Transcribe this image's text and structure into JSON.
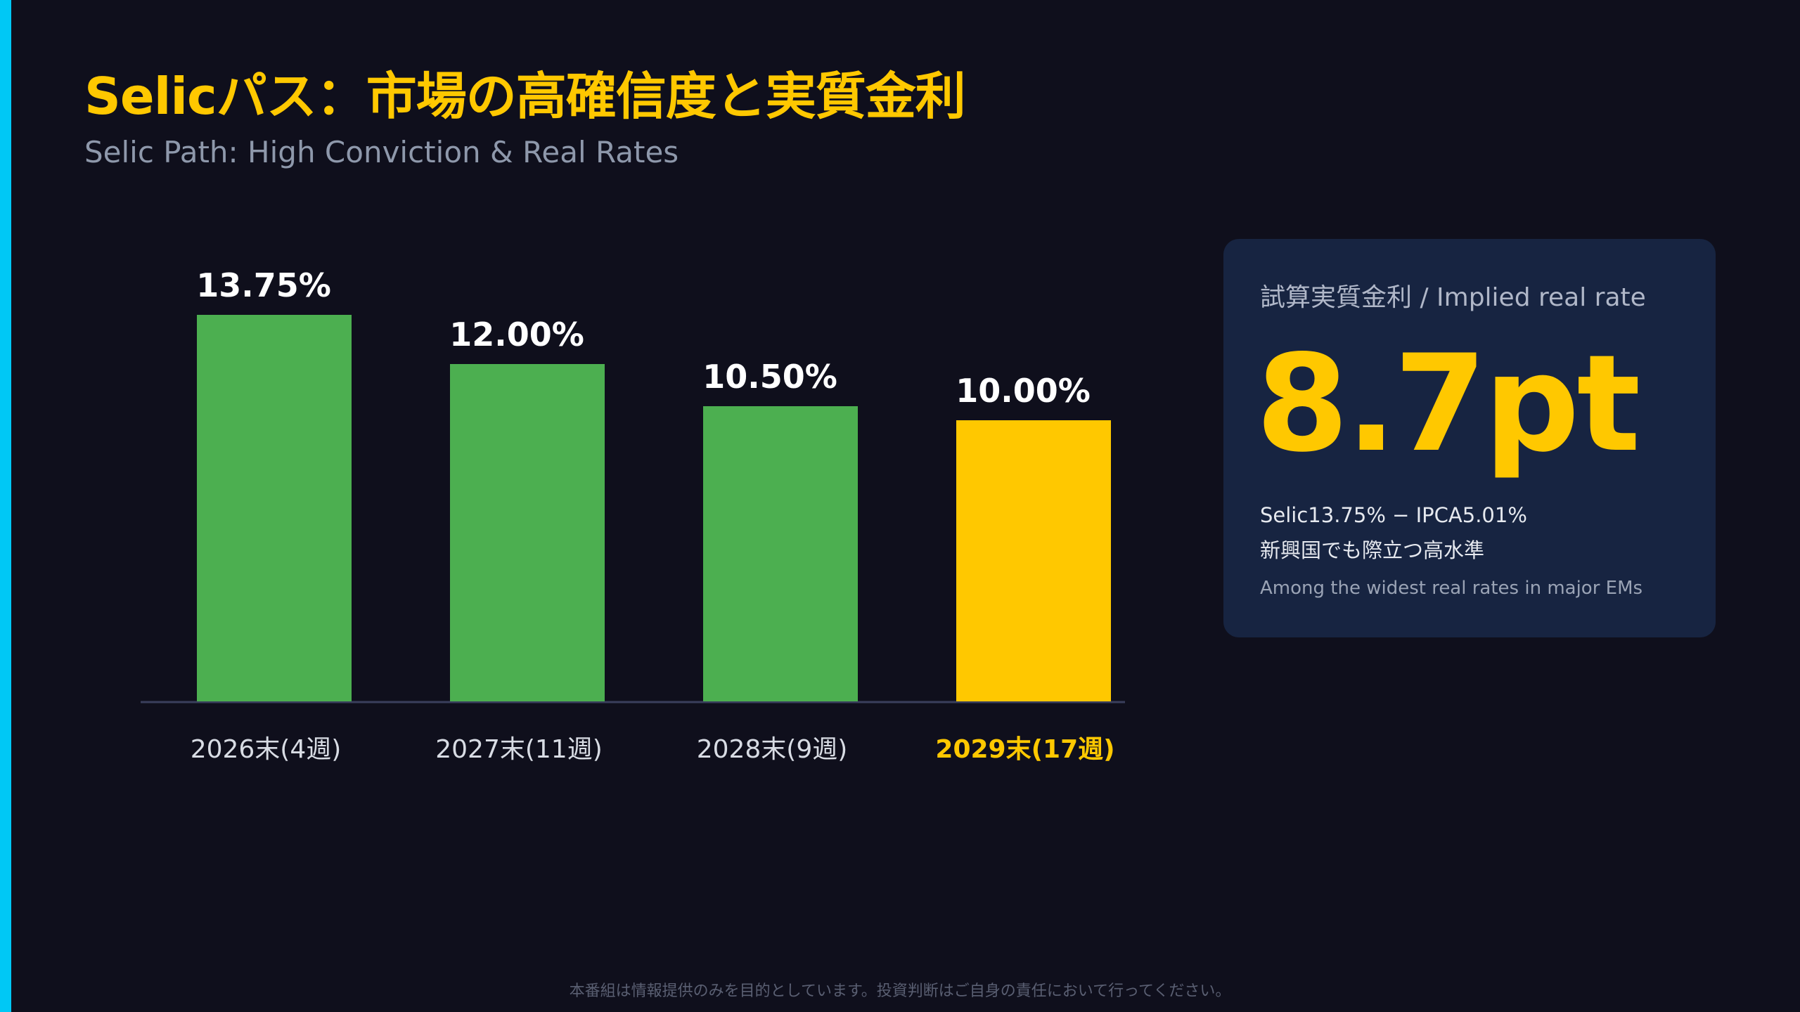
{
  "header": {
    "title": "Selicパス：市場の高確信度と実質金利",
    "subtitle": "Selic Path: High Conviction & Real Rates"
  },
  "chart_data": {
    "type": "bar",
    "categories": [
      "2026末(4週)",
      "2027末(11週)",
      "2028末(9週)",
      "2029末(17週)"
    ],
    "values": [
      13.75,
      12.0,
      10.5,
      10.0
    ],
    "value_labels": [
      "13.75%",
      "12.00%",
      "10.50%",
      "10.00%"
    ],
    "highlight_index": 3,
    "ylim": [
      0,
      15
    ],
    "grid": false,
    "colors": {
      "bar": "#4caf50",
      "highlight": "#ffc800",
      "axis": "#3a3f5c"
    }
  },
  "card": {
    "label": "試算実質金利 / Implied real rate",
    "value": "8.7pt",
    "note_line1": "Selic13.75% − IPCA5.01%",
    "note_line2": "新興国でも際立つ高水準",
    "note_en": "Among the widest real rates in major EMs"
  },
  "footer": {
    "disclaimer": "本番組は情報提供のみを目的としています。投資判断はご自身の責任において行ってください。"
  },
  "colors": {
    "background": "#0f0f1c",
    "accent": "#00c8f5",
    "brand": "#ffc800",
    "card_bg": "#172441"
  }
}
